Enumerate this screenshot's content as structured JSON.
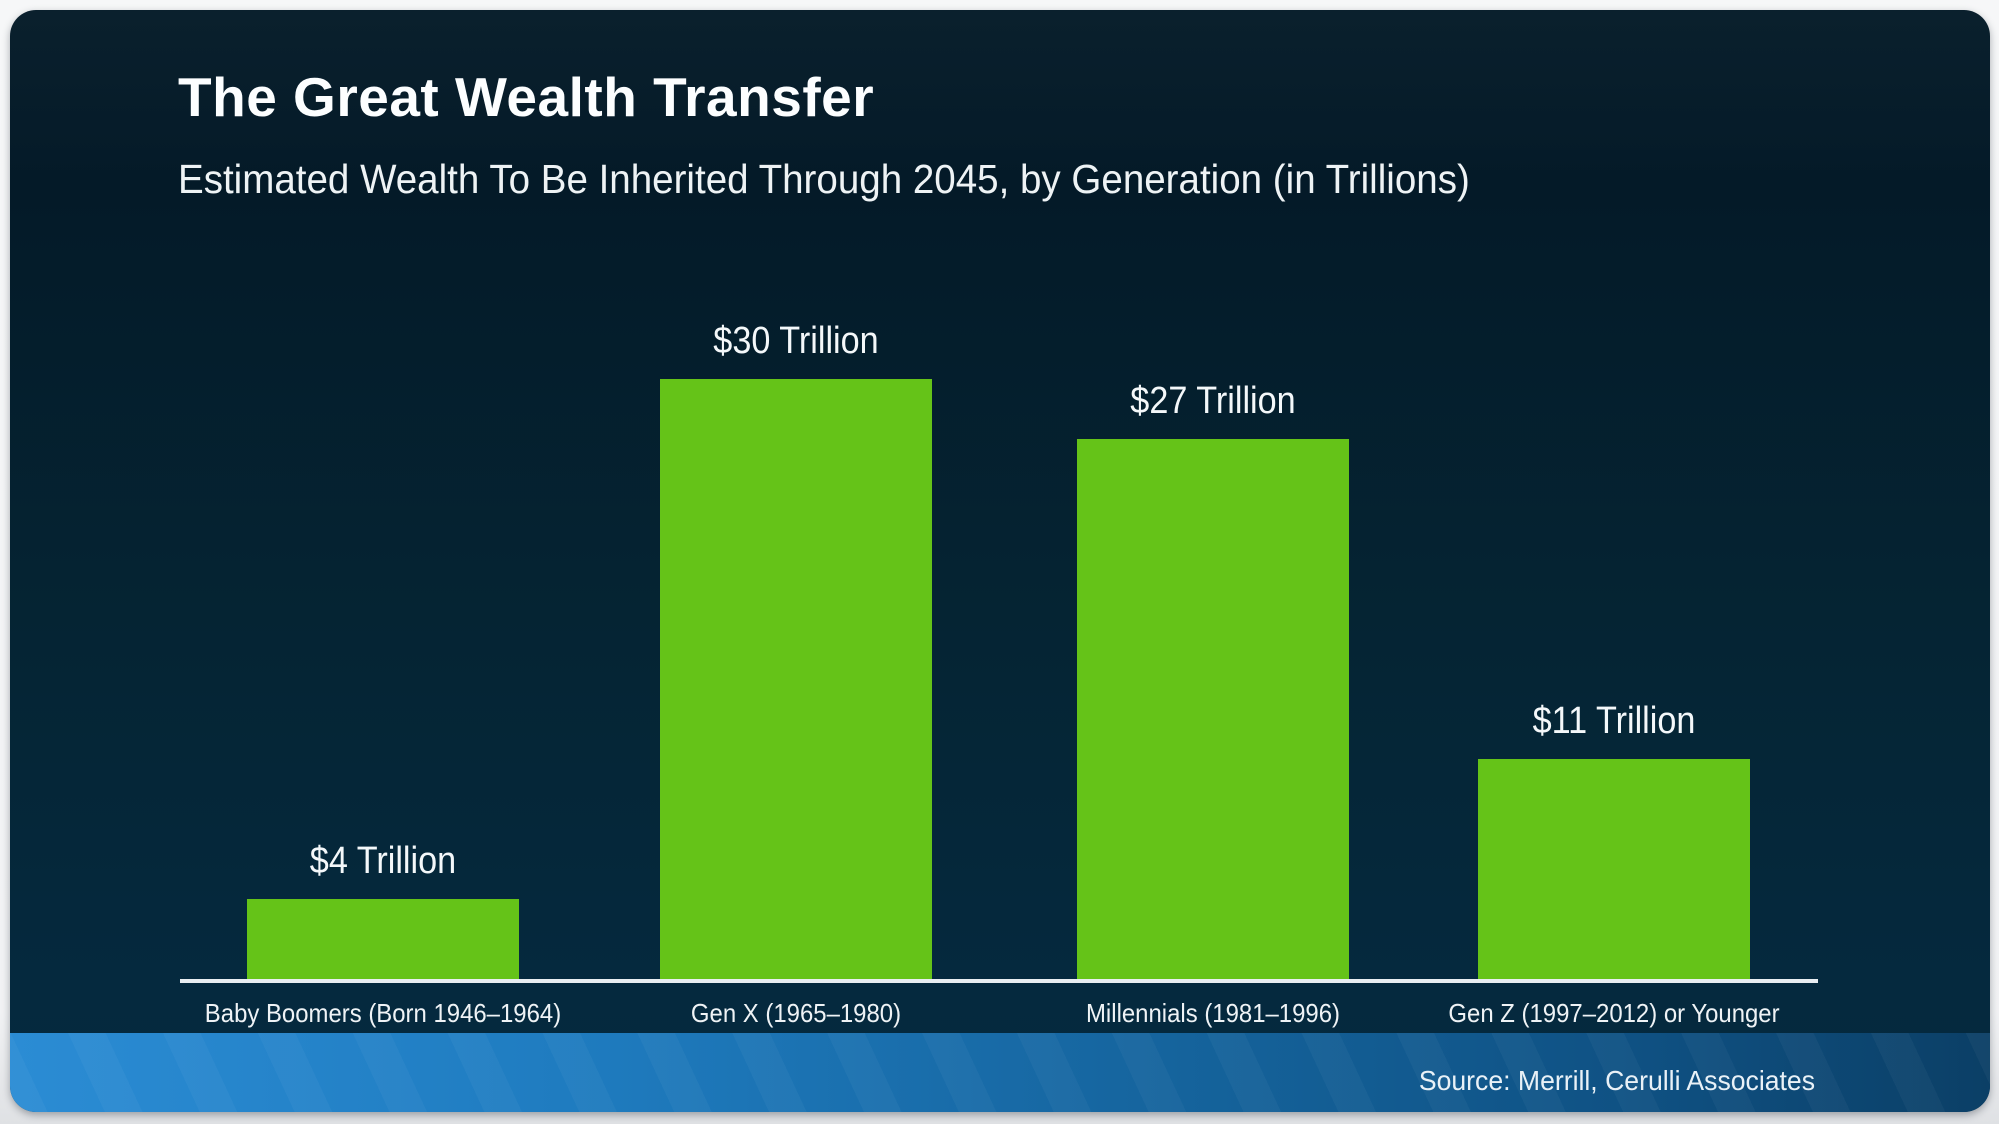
{
  "slide": {
    "title": "The Great Wealth Transfer",
    "subtitle": "Estimated Wealth To Be Inherited Through 2045, by Generation (in Trillions)",
    "source": "Source: Merrill, Cerulli Associates"
  },
  "colors": {
    "bar_green": "#65c318",
    "background_top": "#0a202d",
    "background_bottom": "#05293e",
    "footer_blue_left": "#2b8cd4",
    "footer_blue_right": "#0b3f66",
    "axis_line": "#e9eef2",
    "text": "#f4f8fa"
  },
  "chart_data": {
    "type": "bar",
    "title": "The Great Wealth Transfer",
    "subtitle": "Estimated Wealth To Be Inherited Through 2045, by Generation (in Trillions)",
    "categories": [
      "Baby Boomers (Born 1946–1964)",
      "Gen X (1965–1980)",
      "Millennials (1981–1996)",
      "Gen Z (1997–2012) or Younger"
    ],
    "values": [
      4,
      30,
      27,
      11
    ],
    "value_labels": [
      "$4 Trillion",
      "$30 Trillion",
      "$27 Trillion",
      "$11 Trillion"
    ],
    "unit": "Trillions of US dollars",
    "ylim": [
      0,
      30
    ],
    "grid": false,
    "legend": "none",
    "bar_color": "#65c318",
    "source": "Source: Merrill, Cerulli Associates"
  }
}
